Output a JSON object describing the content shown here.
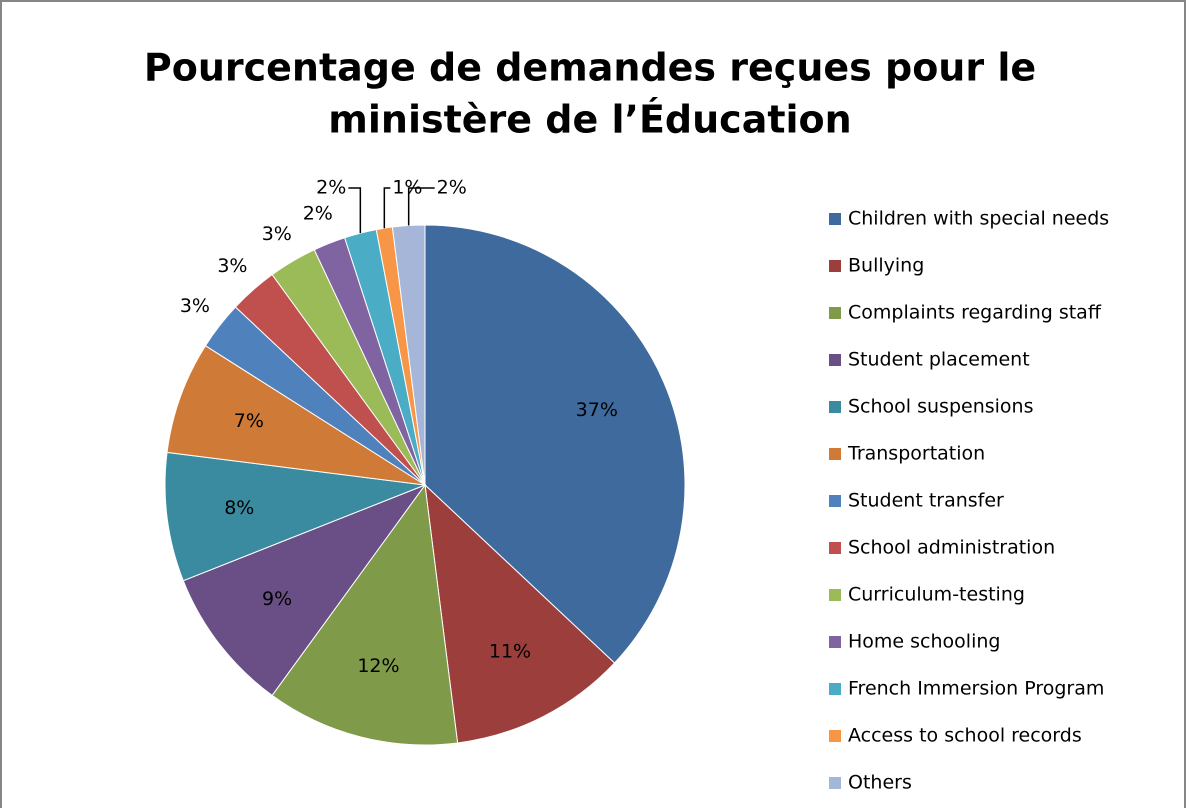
{
  "chart_data": {
    "type": "pie",
    "title": [
      "Pourcentage de demandes reçues pour le",
      "ministère de l’Éducation"
    ],
    "categories": [
      "Children with special needs",
      "Bullying",
      "Complaints regarding staff",
      "Student placement",
      "School suspensions",
      "Transportation",
      "Student transfer",
      "School administration",
      "Curriculum-testing",
      "Home schooling",
      "French Immersion Program",
      "Access to school records",
      "Others"
    ],
    "values": [
      37,
      11,
      12,
      9,
      8,
      7,
      3,
      3,
      3,
      2,
      2,
      1,
      2
    ],
    "value_labels": [
      "37%",
      "11%",
      "12%",
      "9%",
      "8%",
      "7%",
      "3%",
      "3%",
      "3%",
      "2%",
      "2%",
      "1%",
      "2%"
    ],
    "colors": [
      "#3F6A9E",
      "#9C3F3C",
      "#7F9A48",
      "#6A4F86",
      "#3B8BA0",
      "#D07A37",
      "#4F81BD",
      "#C0504D",
      "#9BBB59",
      "#8064A2",
      "#4BACC6",
      "#F79646",
      "#A5B6D9"
    ],
    "legend": "right"
  }
}
